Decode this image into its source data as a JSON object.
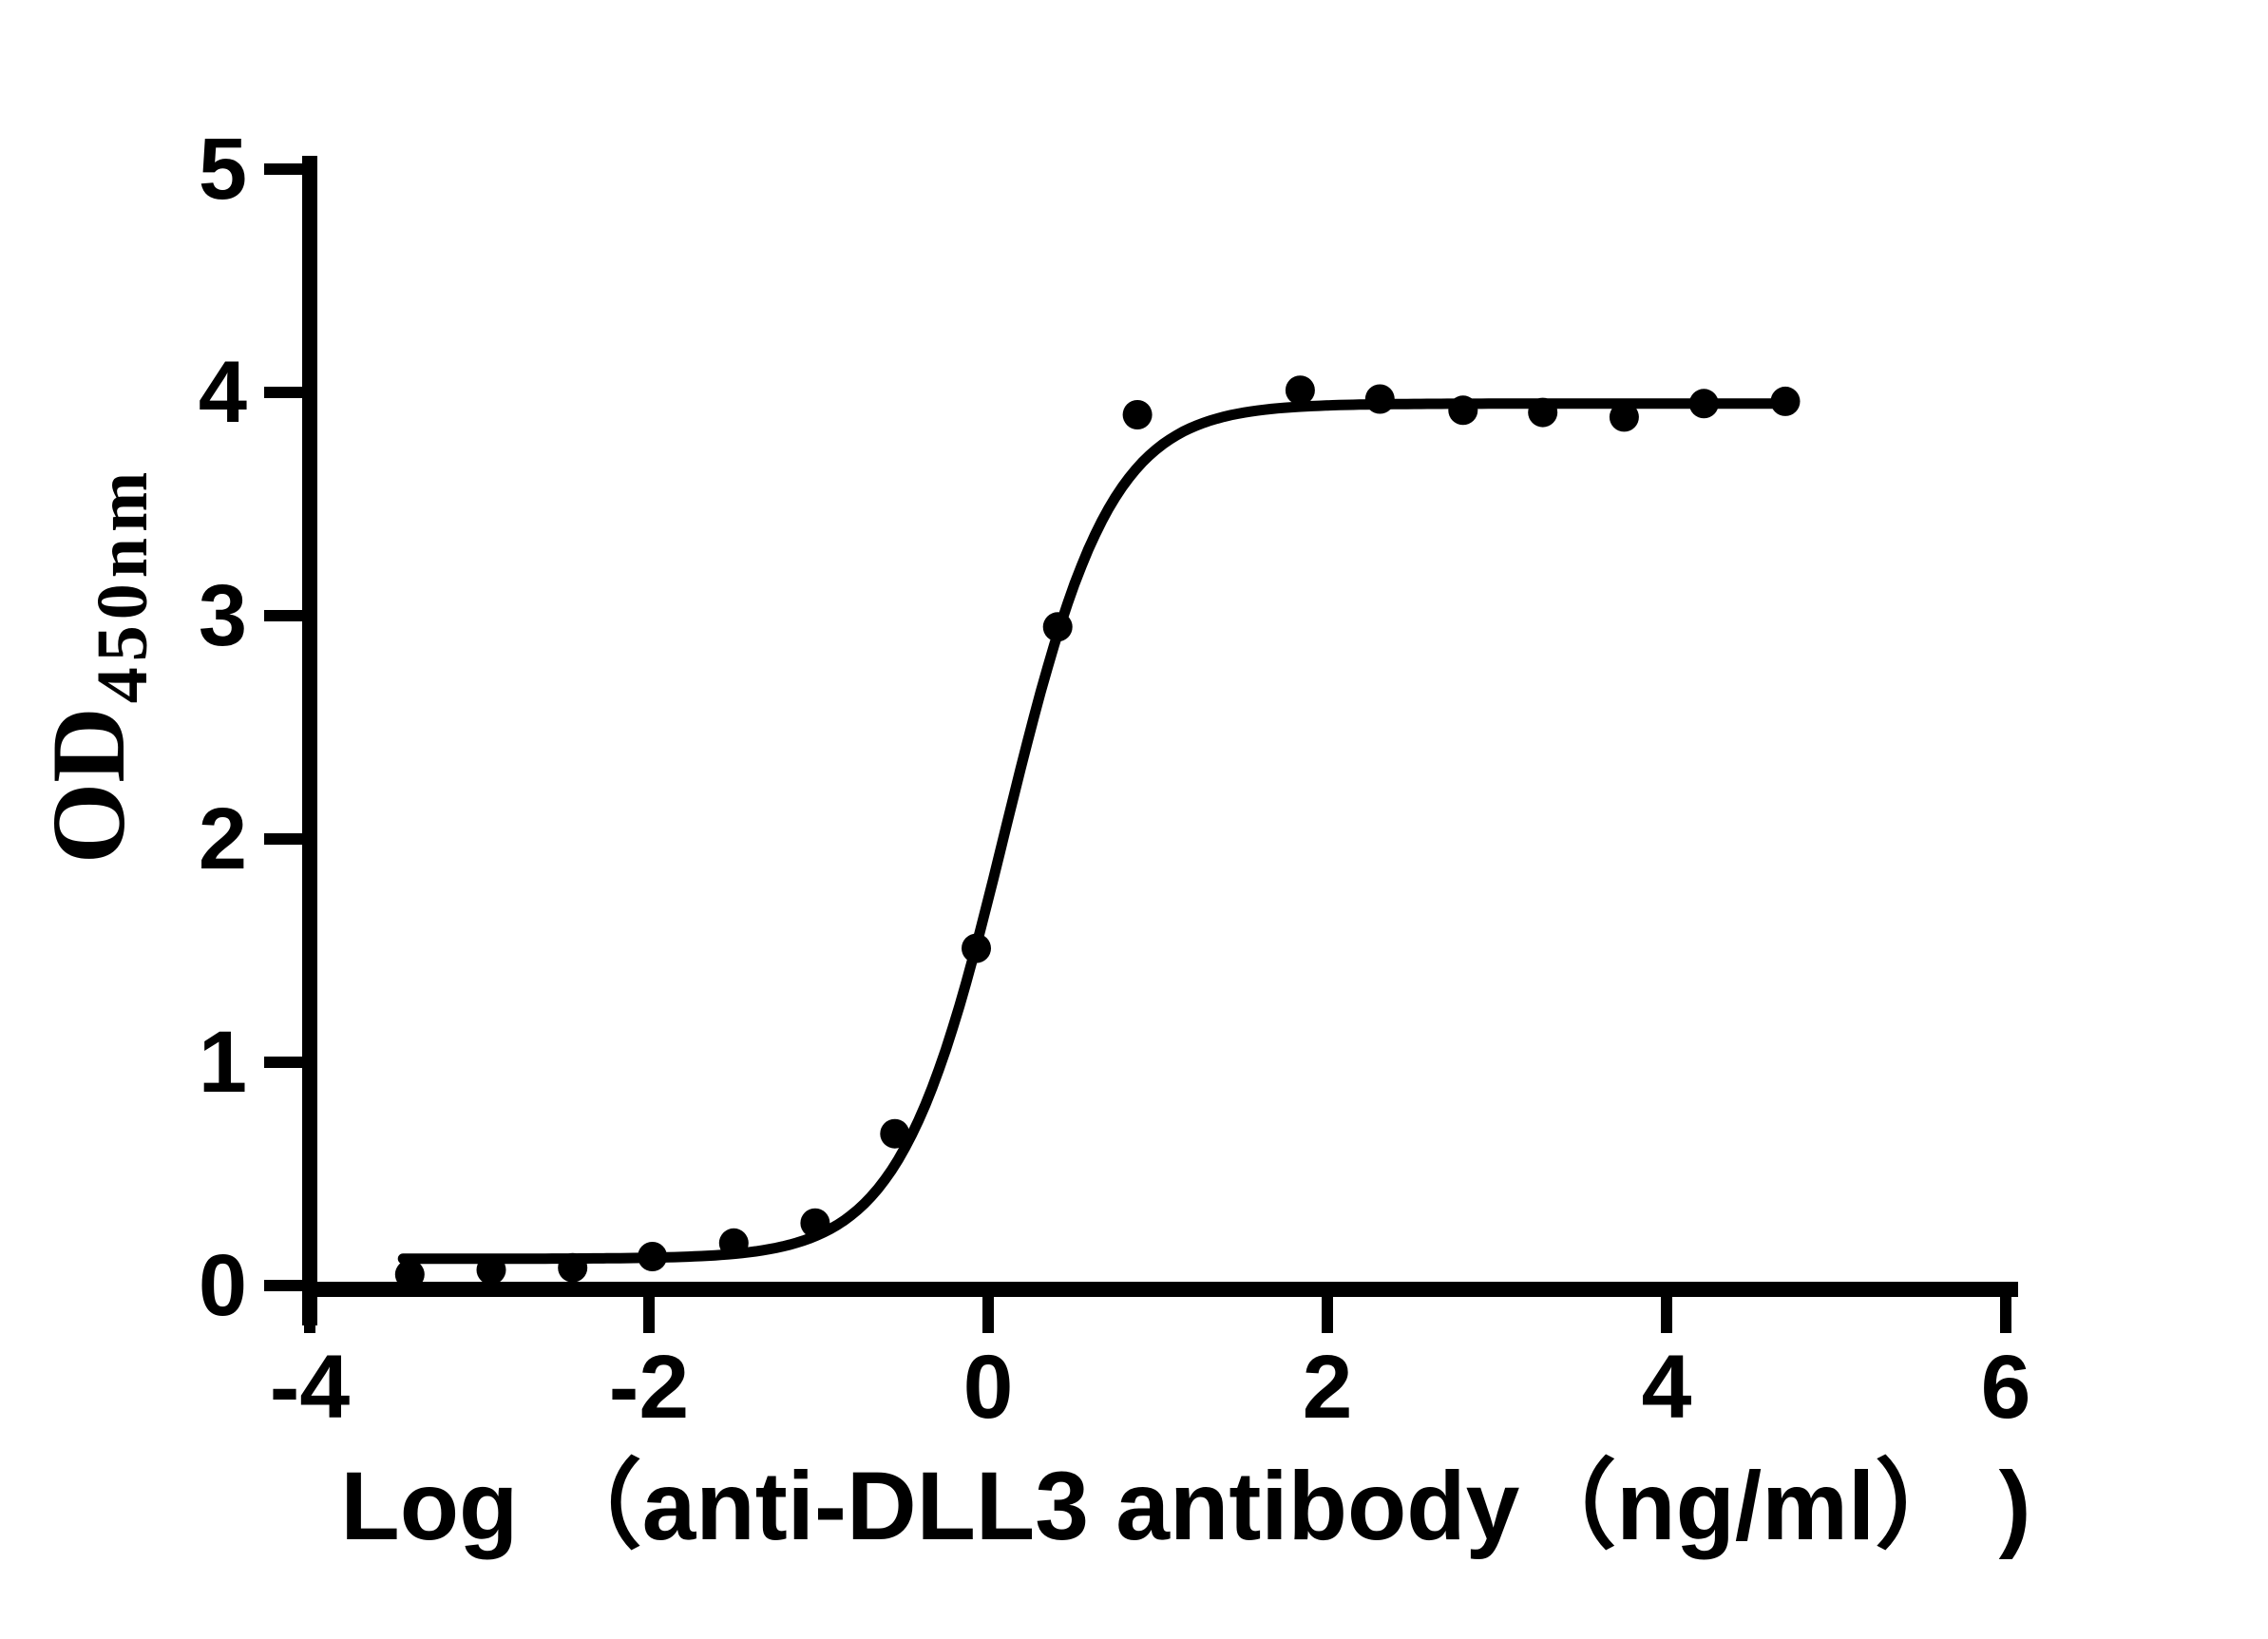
{
  "figure": {
    "background_color": "#ffffff",
    "ink_color": "#000000"
  },
  "chart_data": {
    "type": "scatter",
    "title": "",
    "xlabel": "Log （anti-DLL3 antibody（ng/ml）  )",
    "ylabel_main": "OD",
    "ylabel_sub": "450nm",
    "x_ticks": [
      -4,
      -2,
      0,
      2,
      4,
      6
    ],
    "y_ticks": [
      0,
      1,
      2,
      3,
      4,
      5
    ],
    "xlim": [
      -4,
      6.1
    ],
    "ylim": [
      0,
      5
    ],
    "grid": false,
    "legend": "none",
    "marker_color": "#000000",
    "line_color": "#000000",
    "points": [
      {
        "x": -3.41,
        "y": 0.05
      },
      {
        "x": -2.93,
        "y": 0.07
      },
      {
        "x": -2.45,
        "y": 0.08
      },
      {
        "x": -1.98,
        "y": 0.13
      },
      {
        "x": -1.5,
        "y": 0.19
      },
      {
        "x": -1.02,
        "y": 0.28
      },
      {
        "x": -0.55,
        "y": 0.68
      },
      {
        "x": -0.07,
        "y": 1.51
      },
      {
        "x": 0.41,
        "y": 2.95
      },
      {
        "x": 0.88,
        "y": 3.9
      },
      {
        "x": 1.84,
        "y": 4.01
      },
      {
        "x": 2.31,
        "y": 3.97
      },
      {
        "x": 2.8,
        "y": 3.92
      },
      {
        "x": 3.27,
        "y": 3.91
      },
      {
        "x": 3.75,
        "y": 3.89
      },
      {
        "x": 4.22,
        "y": 3.95
      },
      {
        "x": 4.7,
        "y": 3.96
      }
    ],
    "fit_curve": {
      "model": "4PL sigmoid",
      "bottom": 0.12,
      "top": 3.95,
      "logEC50": 0.1,
      "hill": 1.4,
      "x_start": -3.45,
      "x_end": 4.78
    }
  }
}
